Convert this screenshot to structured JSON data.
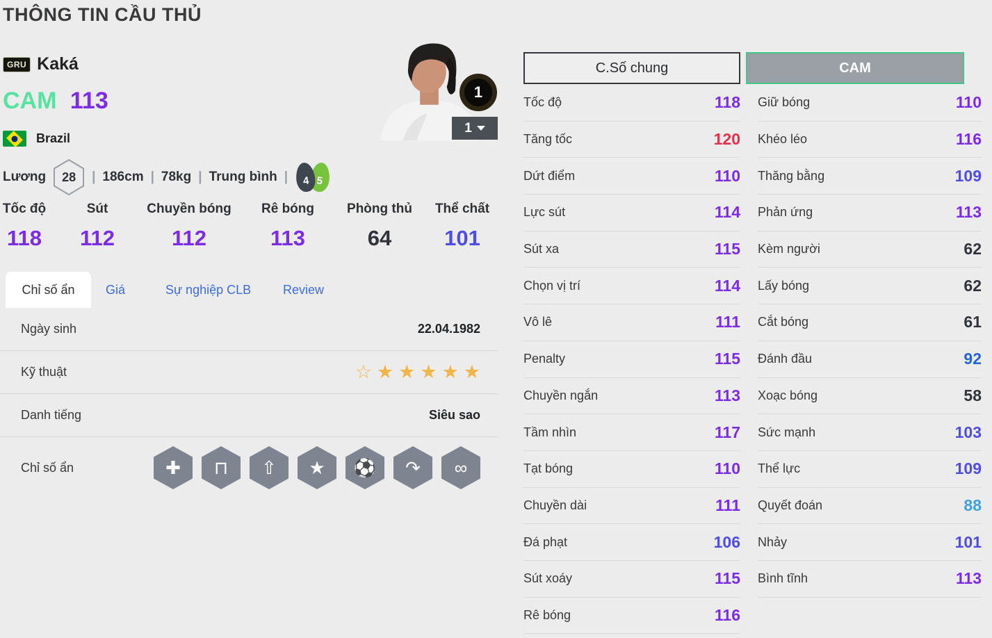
{
  "page": {
    "title": "THÔNG TIN CẦU THỦ"
  },
  "colors": {
    "purple_110_119": "#7c2be6",
    "red_120": "#e5304a",
    "indigo_100_109": "#4f4ce8",
    "blue_90_99": "#2465d3",
    "lightblue_80_89": "#3fa2de",
    "dark_low": "#2f333c",
    "position_mint": "#58e2a2",
    "cam_border_green": "#42c98a",
    "tab_link_blue": "#3d6cd9",
    "star_gold": "#f1b64a",
    "background": "#ececec"
  },
  "player": {
    "team_badge": "GRU",
    "name": "Kaká",
    "position": "CAM",
    "ovr": "113",
    "nation": "Brazil",
    "wage_label": "Lương",
    "wage": "28",
    "sep": "|",
    "height": "186cm",
    "weight": "78kg",
    "body_type": "Trung bình",
    "weak_foot": "4",
    "strong_foot": "5",
    "level_badge": "1",
    "level_dropdown": "1"
  },
  "main_stats": [
    {
      "label": "Tốc độ",
      "value": "118",
      "color": "#7c2be6"
    },
    {
      "label": "Sút",
      "value": "112",
      "color": "#7c2be6"
    },
    {
      "label": "Chuyền bóng",
      "value": "112",
      "color": "#7c2be6"
    },
    {
      "label": "Rê bóng",
      "value": "113",
      "color": "#7c2be6"
    },
    {
      "label": "Phòng thủ",
      "value": "64",
      "color": "#2f333c"
    },
    {
      "label": "Thể chất",
      "value": "101",
      "color": "#4f4ce8"
    }
  ],
  "tabs": {
    "hidden": "Chỉ số ẩn",
    "price": "Giá",
    "career": "Sự nghiệp CLB",
    "review": "Review"
  },
  "details": {
    "dob_label": "Ngày sinh",
    "dob": "22.04.1982",
    "skill_label": "Kỹ thuật",
    "stars": [
      {
        "glyph": "☆"
      },
      {
        "glyph": "★"
      },
      {
        "glyph": "★"
      },
      {
        "glyph": "★"
      },
      {
        "glyph": "★"
      },
      {
        "glyph": "★"
      }
    ],
    "fame_label": "Danh tiếng",
    "fame": "Siêu sao",
    "hidden_label": "Chỉ số ẩn",
    "hidden_icons": [
      {
        "name": "ambulance-icon",
        "glyph": "✚"
      },
      {
        "name": "goal-shot-icon",
        "glyph": "⊓"
      },
      {
        "name": "power-header-icon",
        "glyph": "⇧"
      },
      {
        "name": "boot-star-icon",
        "glyph": "★"
      },
      {
        "name": "chip-shot-icon",
        "glyph": "⚽"
      },
      {
        "name": "curve-pass-icon",
        "glyph": "↷"
      },
      {
        "name": "dribble-path-icon",
        "glyph": "∞"
      }
    ]
  },
  "right_panel": {
    "tab_general": "C.Số chung",
    "tab_position": "CAM",
    "columns": [
      {
        "stats": [
          {
            "label": "Tốc độ",
            "value": "118",
            "color": "#7c2be6"
          },
          {
            "label": "Tăng tốc",
            "value": "120",
            "color": "#e5304a"
          },
          {
            "label": "Dứt điểm",
            "value": "110",
            "color": "#7c2be6"
          },
          {
            "label": "Lực sút",
            "value": "114",
            "color": "#7c2be6"
          },
          {
            "label": "Sút xa",
            "value": "115",
            "color": "#7c2be6"
          },
          {
            "label": "Chọn vị trí",
            "value": "114",
            "color": "#7c2be6"
          },
          {
            "label": "Vô lê",
            "value": "111",
            "color": "#7c2be6"
          },
          {
            "label": "Penalty",
            "value": "115",
            "color": "#7c2be6"
          },
          {
            "label": "Chuyền ngắn",
            "value": "113",
            "color": "#7c2be6"
          },
          {
            "label": "Tầm nhìn",
            "value": "117",
            "color": "#7c2be6"
          },
          {
            "label": "Tạt bóng",
            "value": "110",
            "color": "#7c2be6"
          },
          {
            "label": "Chuyền dài",
            "value": "111",
            "color": "#7c2be6"
          },
          {
            "label": "Đá phạt",
            "value": "106",
            "color": "#4f4ce8"
          },
          {
            "label": "Sút xoáy",
            "value": "115",
            "color": "#7c2be6"
          },
          {
            "label": "Rê bóng",
            "value": "116",
            "color": "#7c2be6"
          }
        ]
      },
      {
        "stats": [
          {
            "label": "Giữ bóng",
            "value": "110",
            "color": "#7c2be6"
          },
          {
            "label": "Khéo léo",
            "value": "116",
            "color": "#7c2be6"
          },
          {
            "label": "Thăng bằng",
            "value": "109",
            "color": "#4f4ce8"
          },
          {
            "label": "Phản ứng",
            "value": "113",
            "color": "#7c2be6"
          },
          {
            "label": "Kèm người",
            "value": "62",
            "color": "#2f333c"
          },
          {
            "label": "Lấy bóng",
            "value": "62",
            "color": "#2f333c"
          },
          {
            "label": "Cắt bóng",
            "value": "61",
            "color": "#2f333c"
          },
          {
            "label": "Đánh đầu",
            "value": "92",
            "color": "#2465d3"
          },
          {
            "label": "Xoạc bóng",
            "value": "58",
            "color": "#2f333c"
          },
          {
            "label": "Sức mạnh",
            "value": "103",
            "color": "#4f4ce8"
          },
          {
            "label": "Thể lực",
            "value": "109",
            "color": "#4f4ce8"
          },
          {
            "label": "Quyết đoán",
            "value": "88",
            "color": "#3fa2de"
          },
          {
            "label": "Nhảy",
            "value": "101",
            "color": "#4f4ce8"
          },
          {
            "label": "Bình tĩnh",
            "value": "113",
            "color": "#7c2be6"
          }
        ]
      }
    ]
  }
}
